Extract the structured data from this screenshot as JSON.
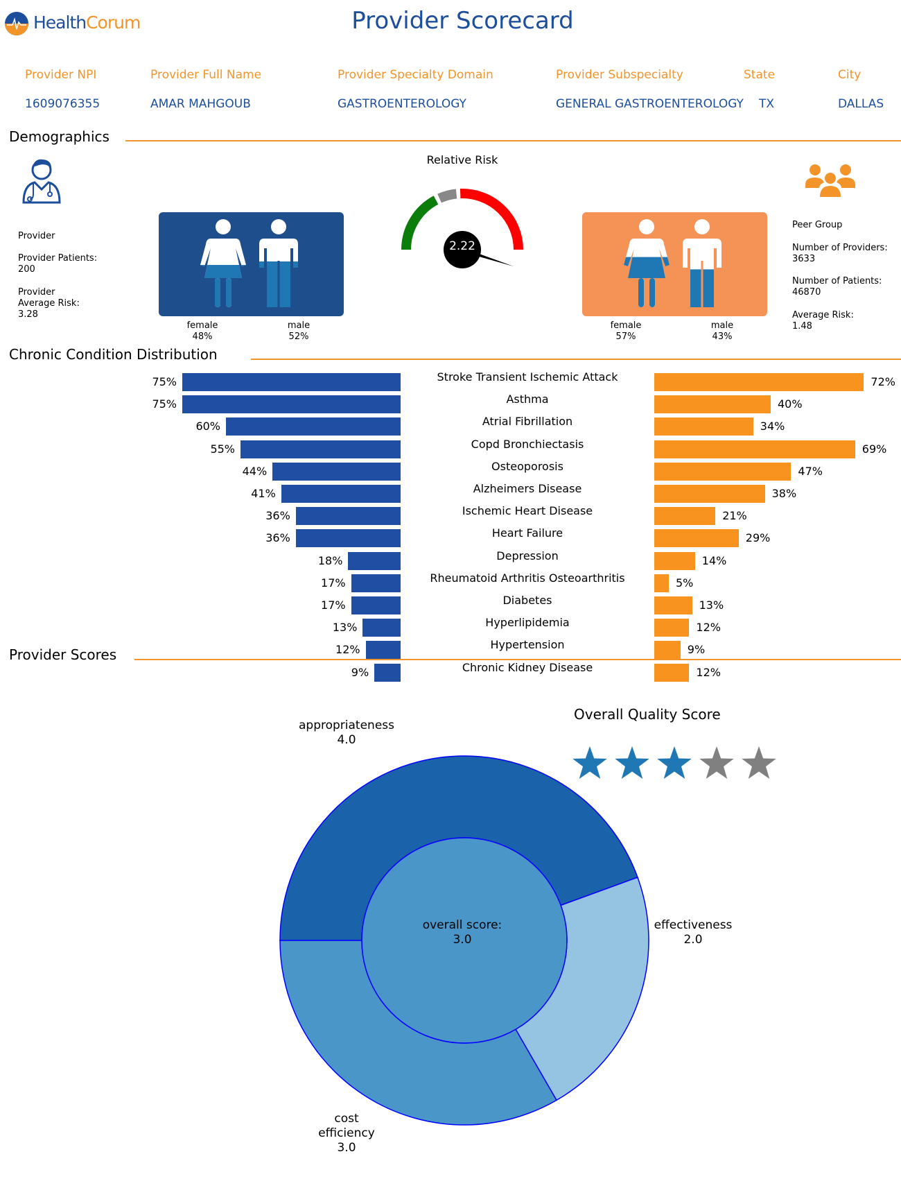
{
  "header": {
    "logo_part1": "Health",
    "logo_part2": "Corum",
    "title": "Provider Scorecard"
  },
  "provider_info": {
    "labels": [
      "Provider NPI",
      "Provider Full Name",
      "Provider Specialty Domain",
      "Provider Subspecialty",
      "State",
      "City"
    ],
    "values": [
      "1609076355",
      "AMAR MAHGOUB",
      "GASTROENTEROLOGY",
      "GENERAL GASTROENTEROLOGY",
      "TX",
      "DALLAS"
    ]
  },
  "sections": {
    "demographics": "Demographics",
    "chronic": "Chronic Condition Distribution",
    "scores": "Provider Scores"
  },
  "provider_panel": {
    "heading": "Provider",
    "patients_label": "Provider Patients:",
    "patients_value": "200",
    "risk_label_1": "Provider",
    "risk_label_2": "Average Risk:",
    "risk_value": "3.28",
    "female_label": "female",
    "female_pct": "48%",
    "female_fill": 0.48,
    "male_label": "male",
    "male_pct": "52%",
    "male_fill": 0.52,
    "box_color": "#1f4e8c"
  },
  "peer_panel": {
    "heading": "Peer Group",
    "providers_label": "Number of Providers:",
    "providers_value": "3633",
    "patients_label": "Number of Patients:",
    "patients_value": "46870",
    "risk_label": "Average Risk:",
    "risk_value": "1.48",
    "female_label": "female",
    "female_pct": "57%",
    "female_fill": 0.57,
    "male_label": "male",
    "male_pct": "43%",
    "male_fill": 0.43,
    "box_color": "#f59356"
  },
  "gauge": {
    "title": "Relative Risk",
    "value_text": "2.22",
    "value": 2.22,
    "colors": [
      "#0a7d0a",
      "#888888",
      "#ff0000"
    ]
  },
  "chart_data": [
    {
      "type": "bar",
      "orientation": "horizontal",
      "categories": [
        "Stroke Transient Ischemic Attack",
        "Asthma",
        "Atrial Fibrillation",
        "Copd Bronchiectasis",
        "Osteoporosis",
        "Alzheimers Disease",
        "Ischemic Heart Disease",
        "Heart Failure",
        "Depression",
        "Rheumatoid Arthritis Osteoarthritis",
        "Diabetes",
        "Hyperlipidemia",
        "Hypertension",
        "Chronic Kidney Disease"
      ],
      "series": [
        {
          "values": [
            75,
            75,
            60,
            55,
            44,
            41,
            36,
            36,
            18,
            17,
            17,
            13,
            12,
            9
          ],
          "labels": [
            "75%",
            "75%",
            "60%",
            "55%",
            "44%",
            "41%",
            "36%",
            "36%",
            "18%",
            "17%",
            "17%",
            "13%",
            "12%",
            "9%"
          ],
          "color": "#1f4ea3"
        },
        {
          "values": [
            72,
            40,
            34,
            69,
            47,
            38,
            21,
            29,
            14,
            5,
            13,
            12,
            9,
            12
          ],
          "labels": [
            "72%",
            "40%",
            "34%",
            "69%",
            "47%",
            "38%",
            "21%",
            "29%",
            "14%",
            "5%",
            "13%",
            "12%",
            "9%",
            "12%"
          ],
          "color": "#f7931e"
        }
      ],
      "xlim": [
        0,
        75
      ]
    },
    {
      "type": "pie",
      "subtype": "donut",
      "slices": [
        {
          "name": "appropriateness",
          "value": 4.0,
          "value_text": "4.0",
          "color": "#1a63aa"
        },
        {
          "name": "effectiveness",
          "value": 2.0,
          "value_text": "2.0",
          "color": "#95c3e2"
        },
        {
          "name": "cost efficiency",
          "value": 3.0,
          "value_text": "3.0",
          "color": "#4a96c9"
        }
      ],
      "center_label": "overall score:",
      "center_value": "3.0",
      "center_color": "#4a96c9",
      "edge_color": "#0000ff"
    }
  ],
  "scores_label_cost_1": "cost",
  "scores_label_cost_2": "efficiency",
  "quality": {
    "title": "Overall Quality Score",
    "stars_filled": 3,
    "stars_total": 5,
    "filled_color": "#1f77b4",
    "empty_color": "#808080"
  }
}
